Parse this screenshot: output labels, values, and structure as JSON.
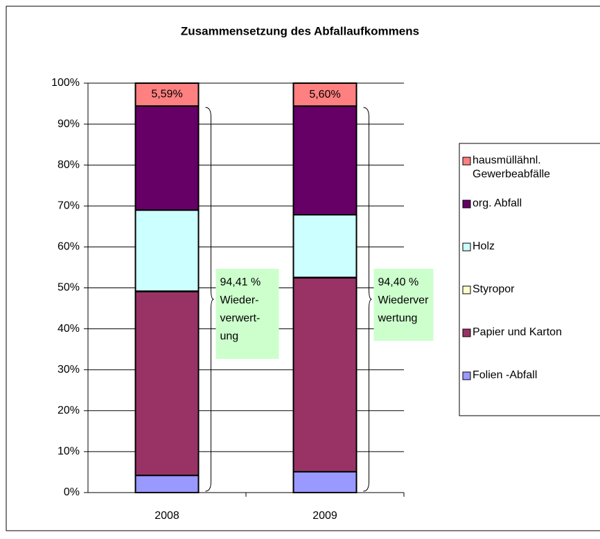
{
  "chart_data": {
    "type": "stacked_bar",
    "title": "Zusammensetzung des Abfallaufkommens",
    "categories": [
      "2008",
      "2009"
    ],
    "series": [
      {
        "name": "Folien -Abfall",
        "color": "#9999FF",
        "values": [
          4.2,
          5.1
        ]
      },
      {
        "name": "Papier und Karton",
        "color": "#993366",
        "values": [
          44.9,
          47.35
        ]
      },
      {
        "name": "Styropor",
        "color": "#FFFFCC",
        "values": [
          0.1,
          0.1
        ]
      },
      {
        "name": "Holz",
        "color": "#CCFFFF",
        "values": [
          19.8,
          15.3
        ]
      },
      {
        "name": "org. Abfall",
        "color": "#660066",
        "values": [
          25.41,
          26.55
        ]
      },
      {
        "name": "hausmüllähnl. Gewerbeabfälle",
        "color": "#FF8080",
        "values": [
          5.59,
          5.6
        ],
        "value_labels": [
          "5,59%",
          "5,60%"
        ]
      }
    ],
    "ylim": [
      0,
      100
    ],
    "yticks": [
      {
        "value": 0,
        "label": "0%"
      },
      {
        "value": 10,
        "label": "10%"
      },
      {
        "value": 20,
        "label": "20%"
      },
      {
        "value": 30,
        "label": "30%"
      },
      {
        "value": 40,
        "label": "40%"
      },
      {
        "value": 50,
        "label": "50%"
      },
      {
        "value": 60,
        "label": "60%"
      },
      {
        "value": 70,
        "label": "70%"
      },
      {
        "value": 80,
        "label": "80%"
      },
      {
        "value": 90,
        "label": "90%"
      },
      {
        "value": 100,
        "label": "100%"
      }
    ],
    "grid": true,
    "legend": "right",
    "annotations": [
      {
        "lines": [
          "94,41 %",
          "Wieder-",
          "verwert-",
          "ung"
        ]
      },
      {
        "lines": [
          "94,40 %",
          "Wiederver",
          "wertung"
        ]
      }
    ]
  }
}
